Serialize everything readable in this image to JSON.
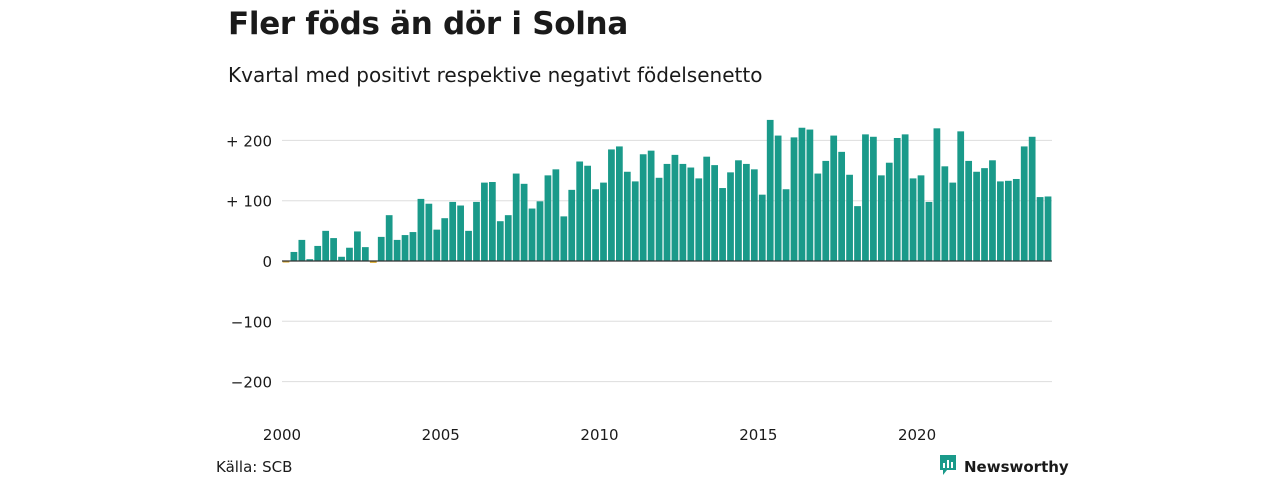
{
  "title": "Fler föds än dör i Solna",
  "subtitle": "Kvartal med positivt respektive negativt födelsenetto",
  "source": "Källa: SCB",
  "brand": {
    "name": "Newsworthy",
    "icon": "newsworthy-logo-icon"
  },
  "colors": {
    "positive": "#1a9a8a",
    "negative": "#d9a21b",
    "brand": "#1a9a8a",
    "grid": "#dddddd",
    "zero": "#333333"
  },
  "chart_data": {
    "type": "bar",
    "title": "Fler föds än dör i Solna",
    "subtitle": "Kvartal med positivt respektive negativt födelsenetto",
    "xlabel": "",
    "ylabel": "",
    "ylim": [
      -240,
      240
    ],
    "xlim": [
      2000,
      2024.25
    ],
    "grid": true,
    "legend": "none",
    "y_ticks": [
      {
        "value": 200,
        "label": "+ 200"
      },
      {
        "value": 100,
        "label": "+ 100"
      },
      {
        "value": 0,
        "label": "0"
      },
      {
        "value": -100,
        "label": "−100"
      },
      {
        "value": -200,
        "label": "−200"
      }
    ],
    "x_ticks": [
      {
        "value": 2000,
        "label": "2000"
      },
      {
        "value": 2005,
        "label": "2005"
      },
      {
        "value": 2010,
        "label": "2010"
      },
      {
        "value": 2015,
        "label": "2015"
      },
      {
        "value": 2020,
        "label": "2020"
      }
    ],
    "x_start": 2000,
    "x_step": 0.25,
    "categories": [
      "2000 K1",
      "2000 K2",
      "2000 K3",
      "2000 K4",
      "2001 K1",
      "2001 K2",
      "2001 K3",
      "2001 K4",
      "2002 K1",
      "2002 K2",
      "2002 K3",
      "2002 K4",
      "2003 K1",
      "2003 K2",
      "2003 K3",
      "2003 K4",
      "2004 K1",
      "2004 K2",
      "2004 K3",
      "2004 K4",
      "2005 K1",
      "2005 K2",
      "2005 K3",
      "2005 K4",
      "2006 K1",
      "2006 K2",
      "2006 K3",
      "2006 K4",
      "2007 K1",
      "2007 K2",
      "2007 K3",
      "2007 K4",
      "2008 K1",
      "2008 K2",
      "2008 K3",
      "2008 K4",
      "2009 K1",
      "2009 K2",
      "2009 K3",
      "2009 K4",
      "2010 K1",
      "2010 K2",
      "2010 K3",
      "2010 K4",
      "2011 K1",
      "2011 K2",
      "2011 K3",
      "2011 K4",
      "2012 K1",
      "2012 K2",
      "2012 K3",
      "2012 K4",
      "2013 K1",
      "2013 K2",
      "2013 K3",
      "2013 K4",
      "2014 K1",
      "2014 K2",
      "2014 K3",
      "2014 K4",
      "2015 K1",
      "2015 K2",
      "2015 K3",
      "2015 K4",
      "2016 K1",
      "2016 K2",
      "2016 K3",
      "2016 K4",
      "2017 K1",
      "2017 K2",
      "2017 K3",
      "2017 K4",
      "2018 K1",
      "2018 K2",
      "2018 K3",
      "2018 K4",
      "2019 K1",
      "2019 K2",
      "2019 K3",
      "2019 K4",
      "2020 K1",
      "2020 K2",
      "2020 K3",
      "2020 K4",
      "2021 K1",
      "2021 K2",
      "2021 K3",
      "2021 K4",
      "2022 K1",
      "2022 K2",
      "2022 K3",
      "2022 K4",
      "2023 K1",
      "2023 K2",
      "2023 K3",
      "2023 K4",
      "2024 K1"
    ],
    "values": [
      -2,
      15,
      35,
      3,
      25,
      50,
      38,
      7,
      22,
      49,
      23,
      -3,
      40,
      76,
      35,
      43,
      48,
      103,
      95,
      52,
      71,
      98,
      92,
      50,
      98,
      130,
      131,
      66,
      76,
      145,
      128,
      87,
      99,
      142,
      152,
      74,
      118,
      165,
      158,
      119,
      130,
      185,
      190,
      148,
      132,
      177,
      183,
      138,
      161,
      176,
      161,
      155,
      137,
      173,
      159,
      121,
      147,
      167,
      161,
      152,
      110,
      234,
      208,
      119,
      205,
      221,
      218,
      145,
      166,
      208,
      181,
      143,
      91,
      210,
      206,
      142,
      163,
      204,
      210,
      137,
      142,
      98,
      220,
      157,
      130,
      215,
      166,
      148,
      154,
      167,
      132,
      133,
      136,
      190,
      206,
      106,
      107
    ]
  }
}
